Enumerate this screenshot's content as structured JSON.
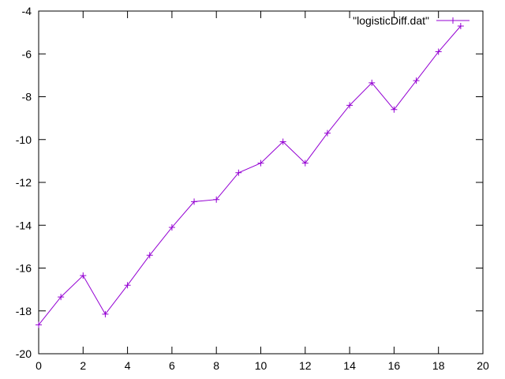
{
  "chart_data": {
    "type": "line",
    "title": "",
    "xlabel": "",
    "ylabel": "",
    "xlim": [
      0,
      20
    ],
    "ylim": [
      -20,
      -4
    ],
    "xticks": [
      0,
      2,
      4,
      6,
      8,
      10,
      12,
      14,
      16,
      18,
      20
    ],
    "yticks": [
      -20,
      -18,
      -16,
      -14,
      -12,
      -10,
      -8,
      -6,
      -4
    ],
    "grid": false,
    "legend_position": "top-right",
    "series": [
      {
        "name": "\"logisticDiff.dat\"",
        "color": "#9400d3",
        "marker": "plus",
        "x": [
          0,
          1,
          2,
          3,
          4,
          5,
          6,
          7,
          8,
          9,
          10,
          11,
          12,
          13,
          14,
          15,
          16,
          17,
          18,
          19
        ],
        "y": [
          -18.65,
          -17.35,
          -16.35,
          -18.15,
          -16.8,
          -15.4,
          -14.1,
          -12.9,
          -12.8,
          -11.55,
          -11.1,
          -10.1,
          -11.1,
          -9.7,
          -8.4,
          -7.35,
          -8.6,
          -7.25,
          -5.9,
          -4.7
        ]
      }
    ]
  }
}
